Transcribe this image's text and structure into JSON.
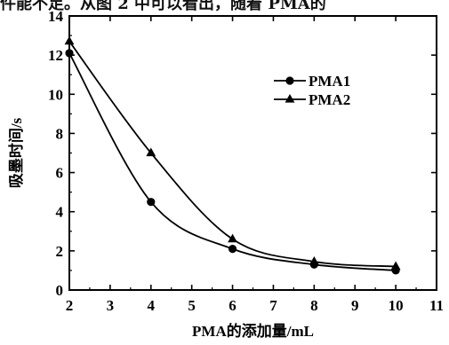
{
  "top_text": "件能不足。从图 2 中可以看出，随着 PMA的",
  "chart_data": {
    "type": "line",
    "xlabel": "PMA的添加量/mL",
    "ylabel": "吸墨时间/s",
    "xlim": [
      2,
      11
    ],
    "ylim": [
      0,
      14
    ],
    "xticks": [
      2,
      3,
      4,
      5,
      6,
      7,
      8,
      9,
      10,
      11
    ],
    "yticks": [
      0,
      2,
      4,
      6,
      8,
      10,
      12,
      14
    ],
    "grid": false,
    "legend_position": "right-upper",
    "series": [
      {
        "name": "PMA1",
        "marker": "circle",
        "x": [
          2,
          4,
          6,
          8,
          10
        ],
        "y": [
          12.1,
          4.5,
          2.1,
          1.3,
          1.0
        ]
      },
      {
        "name": "PMA2",
        "marker": "triangle",
        "x": [
          2,
          4,
          6,
          8,
          10
        ],
        "y": [
          12.7,
          7.0,
          2.6,
          1.45,
          1.2
        ]
      }
    ]
  }
}
